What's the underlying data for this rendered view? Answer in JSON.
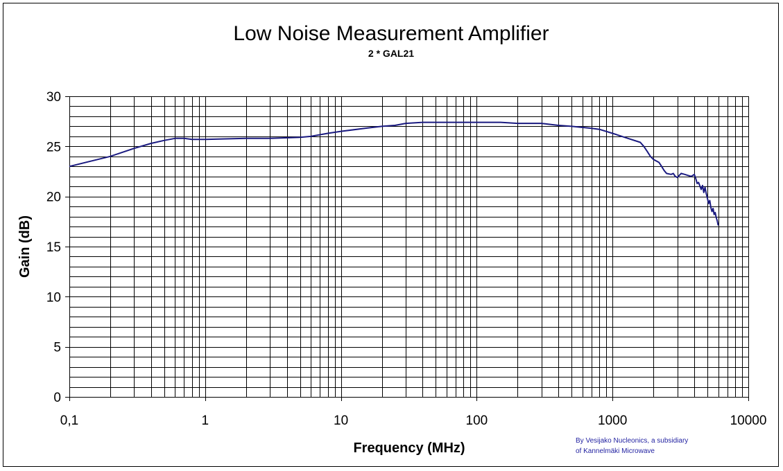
{
  "chart_data": {
    "type": "line",
    "title": "Low Noise Measurement Amplifier",
    "subtitle": "2 * GAL21",
    "xlabel": "Frequency (MHz)",
    "ylabel": "Gain (dB)",
    "x_scale": "log",
    "xlim": [
      0.1,
      10000
    ],
    "ylim": [
      0,
      30
    ],
    "x_tick_labels": [
      "0,1",
      "1",
      "10",
      "100",
      "1000",
      "10000"
    ],
    "y_tick_labels": [
      "0",
      "5",
      "10",
      "15",
      "20",
      "25",
      "30"
    ],
    "grid": true,
    "legend": "none",
    "line_color": "#1a1a80",
    "series": [
      {
        "x": [
          0.1,
          0.2,
          0.3,
          0.4,
          0.5,
          0.6,
          0.7,
          0.8,
          1,
          2,
          3,
          5,
          6,
          8,
          10,
          15,
          20,
          25,
          30,
          40,
          50,
          70,
          100,
          150,
          200,
          300,
          400,
          500,
          700,
          800,
          1000,
          1300,
          1600,
          1700,
          1800,
          1900,
          2000,
          2200,
          2300,
          2400,
          2500,
          2700,
          2800,
          2900,
          3000,
          3200,
          3400,
          3600,
          3800,
          4000,
          4100,
          4200,
          4300,
          4500,
          4600,
          4700,
          4800,
          4900,
          5000,
          5100,
          5200,
          5300,
          5400,
          5500,
          5600,
          5700,
          5800,
          5900,
          6000
        ],
        "y": [
          23.0,
          24.0,
          24.8,
          25.3,
          25.6,
          25.8,
          25.8,
          25.7,
          25.7,
          25.8,
          25.8,
          25.9,
          26.0,
          26.3,
          26.5,
          26.8,
          27.0,
          27.1,
          27.3,
          27.4,
          27.4,
          27.4,
          27.4,
          27.4,
          27.3,
          27.3,
          27.1,
          27.0,
          26.8,
          26.7,
          26.3,
          25.8,
          25.4,
          25.0,
          24.5,
          24.0,
          23.7,
          23.4,
          23.0,
          22.6,
          22.3,
          22.2,
          22.3,
          22.0,
          21.9,
          22.3,
          22.2,
          22.1,
          22.0,
          22.2,
          21.8,
          21.3,
          21.4,
          20.7,
          21.1,
          20.4,
          20.9,
          20.3,
          19.8,
          19.3,
          19.6,
          18.9,
          18.5,
          18.8,
          18.2,
          18.4,
          17.9,
          17.6,
          17.1
        ]
      }
    ]
  },
  "credit": {
    "line1": "By Vesijako Nucleonics, a subsidiary",
    "line2": "of Kannelmäki Microwave"
  }
}
